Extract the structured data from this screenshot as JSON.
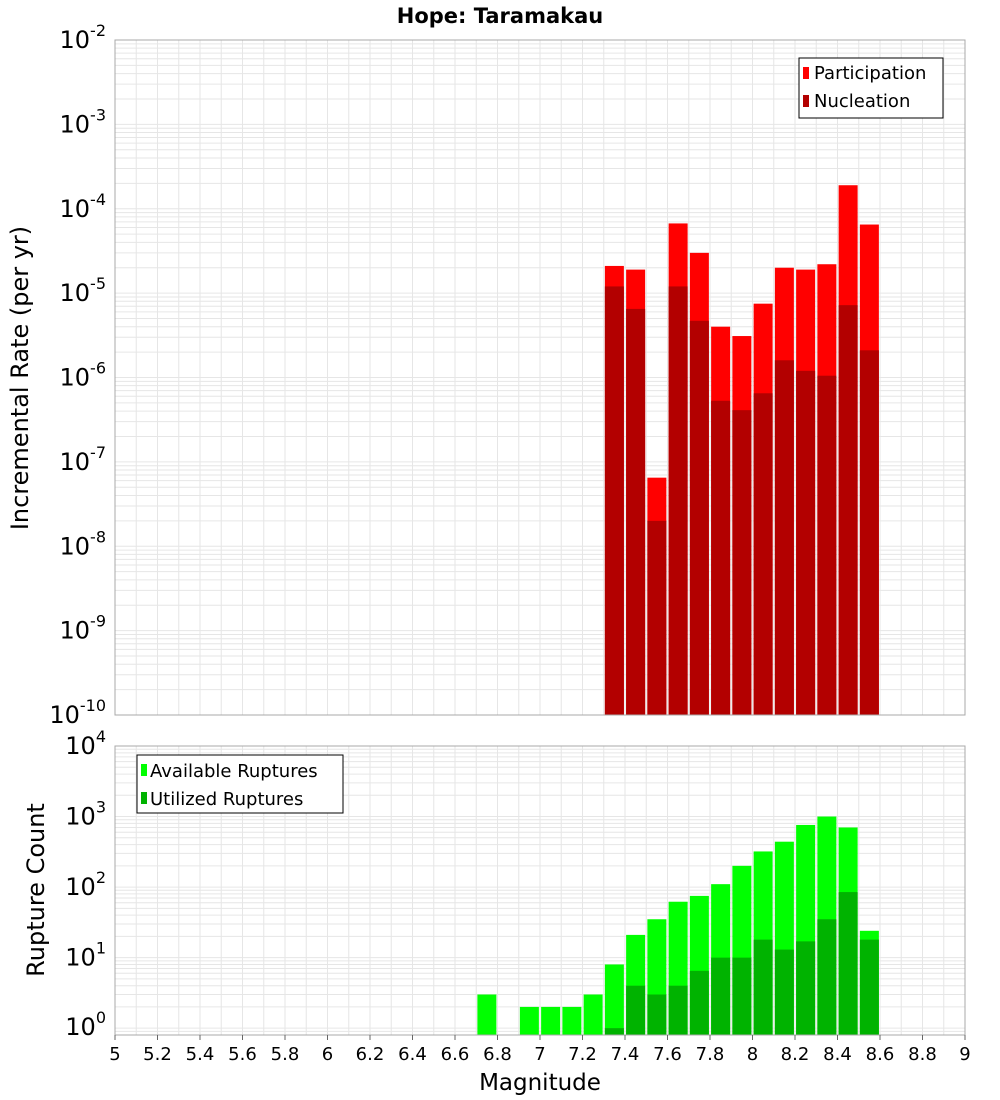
{
  "chart_data": [
    {
      "type": "bar",
      "title": "Hope: Taramakau",
      "xlabel": "",
      "ylabel": "Incremental Rate (per yr)",
      "xlim": [
        5,
        9
      ],
      "ylim": [
        1e-10,
        0.01
      ],
      "y_scale": "log",
      "grid": true,
      "legend_position": "top-right",
      "y_tick_exponents": [
        "-2",
        "-3",
        "-4",
        "-5",
        "-6",
        "-7",
        "-8",
        "-9",
        "-10"
      ],
      "y_tick_base": "10",
      "x": [
        7.35,
        7.45,
        7.55,
        7.65,
        7.75,
        7.85,
        7.95,
        8.05,
        8.15,
        8.25,
        8.35,
        8.45,
        8.55
      ],
      "series": [
        {
          "name": "Participation",
          "color": "#ff0000",
          "values": [
            2.1e-05,
            1.9e-05,
            6.5e-08,
            6.7e-05,
            3e-05,
            4e-06,
            3.1e-06,
            7.5e-06,
            2e-05,
            1.9e-05,
            2.2e-05,
            0.00019,
            6.5e-05
          ]
        },
        {
          "name": "Nucleation",
          "color": "#b30000",
          "values": [
            1.2e-05,
            6.5e-06,
            2e-08,
            1.2e-05,
            4.7e-06,
            5.3e-07,
            4.1e-07,
            6.5e-07,
            1.6e-06,
            1.2e-06,
            1.05e-06,
            7.2e-06,
            2.1e-06
          ]
        }
      ]
    },
    {
      "type": "bar",
      "title": "",
      "xlabel": "Magnitude",
      "ylabel": "Rupture Count",
      "xlim": [
        5,
        9
      ],
      "ylim": [
        0.8,
        10000
      ],
      "y_scale": "log",
      "grid": true,
      "legend_position": "top-left",
      "x_ticks": [
        "5",
        "5.2",
        "5.4",
        "5.6",
        "5.8",
        "6",
        "6.2",
        "6.4",
        "6.6",
        "6.8",
        "7",
        "7.2",
        "7.4",
        "7.6",
        "7.8",
        "8",
        "8.2",
        "8.4",
        "8.6",
        "8.8",
        "9"
      ],
      "y_tick_exponents": [
        "4",
        "3",
        "2",
        "1",
        "0"
      ],
      "y_tick_base": "10",
      "series": [
        {
          "name": "Available Ruptures",
          "color": "#00ff00",
          "x": [
            6.75,
            6.95,
            7.05,
            7.15,
            7.25,
            7.35,
            7.45,
            7.55,
            7.65,
            7.75,
            7.85,
            7.95,
            8.05,
            8.15,
            8.25,
            8.35,
            8.45,
            8.55
          ],
          "values": [
            3,
            2,
            2,
            2,
            3,
            8,
            21,
            35,
            62,
            75,
            110,
            200,
            320,
            440,
            760,
            1000,
            700,
            24
          ]
        },
        {
          "name": "Utilized Ruptures",
          "color": "#00b300",
          "x": [
            7.35,
            7.45,
            7.55,
            7.65,
            7.75,
            7.85,
            7.95,
            8.05,
            8.15,
            8.25,
            8.35,
            8.45,
            8.55
          ],
          "values": [
            1,
            4,
            3,
            4,
            6.5,
            10,
            10,
            18,
            13,
            17,
            35,
            85,
            18
          ]
        }
      ]
    }
  ]
}
